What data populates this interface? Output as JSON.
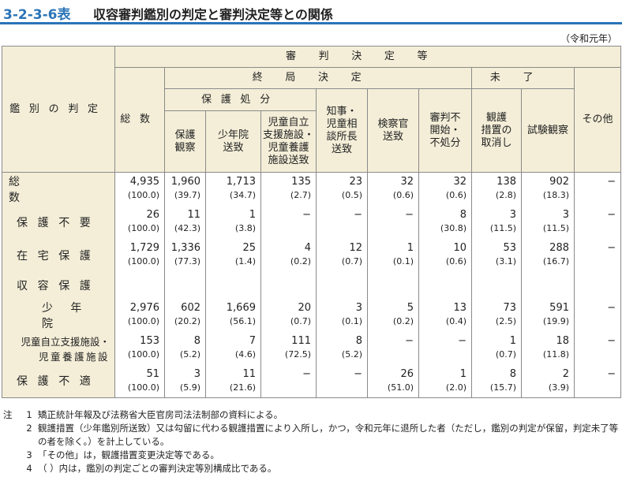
{
  "header": {
    "number": "3-2-3-6表",
    "title": "収容審判鑑別の判定と審判決定等との関係"
  },
  "era": "（令和元年）",
  "table": {
    "corner": "鑑別の判定",
    "group": "審判決定等",
    "total": "総数",
    "final": "終局決定",
    "pending": "未了",
    "other": "その他",
    "protective": "保護処分",
    "cols": [
      [
        "保護",
        "観察"
      ],
      [
        "少年院",
        "送致"
      ],
      [
        "児童自立",
        "支援施設・",
        "児童養護",
        "施設送致"
      ],
      [
        "知事・",
        "児童相",
        "談所長",
        "送致"
      ],
      [
        "検察官",
        "送致"
      ],
      [
        "審判不",
        "開始・",
        "不処分"
      ],
      [
        "観護",
        "措置の",
        "取消し"
      ],
      [
        "試験観察"
      ]
    ],
    "rows": [
      {
        "label": [
          "総数"
        ],
        "cells": [
          [
            "4,935",
            "(100.0)"
          ],
          [
            "1,960",
            "(39.7)"
          ],
          [
            "1,713",
            "(34.7)"
          ],
          [
            "135",
            "(2.7)"
          ],
          [
            "23",
            "(0.5)"
          ],
          [
            "32",
            "(0.6)"
          ],
          [
            "32",
            "(0.6)"
          ],
          [
            "138",
            "(2.8)"
          ],
          [
            "902",
            "(18.3)"
          ],
          [
            "−"
          ]
        ]
      },
      {
        "label": [
          "保護不要"
        ],
        "cells": [
          [
            "26",
            "(100.0)"
          ],
          [
            "11",
            "(42.3)"
          ],
          [
            "1",
            "(3.8)"
          ],
          [
            "−"
          ],
          [
            "−"
          ],
          [
            "−"
          ],
          [
            "8",
            "(30.8)"
          ],
          [
            "3",
            "(11.5)"
          ],
          [
            "3",
            "(11.5)"
          ],
          [
            "−"
          ]
        ]
      },
      {
        "label": [
          "在宅保護"
        ],
        "cells": [
          [
            "1,729",
            "(100.0)"
          ],
          [
            "1,336",
            "(77.3)"
          ],
          [
            "25",
            "(1.4)"
          ],
          [
            "4",
            "(0.2)"
          ],
          [
            "12",
            "(0.7)"
          ],
          [
            "1",
            "(0.1)"
          ],
          [
            "10",
            "(0.6)"
          ],
          [
            "53",
            "(3.1)"
          ],
          [
            "288",
            "(16.7)"
          ],
          [
            "−"
          ]
        ]
      },
      {
        "label": [
          "収容保護"
        ],
        "cells": []
      },
      {
        "label": [
          "少年院"
        ],
        "cells": [
          [
            "2,976",
            "(100.0)"
          ],
          [
            "602",
            "(20.2)"
          ],
          [
            "1,669",
            "(56.1)"
          ],
          [
            "20",
            "(0.7)"
          ],
          [
            "3",
            "(0.1)"
          ],
          [
            "5",
            "(0.2)"
          ],
          [
            "13",
            "(0.4)"
          ],
          [
            "73",
            "(2.5)"
          ],
          [
            "591",
            "(19.9)"
          ],
          [
            "−"
          ]
        ]
      },
      {
        "label": [
          "児童自立支援施設・",
          "児童養護施設"
        ],
        "cells": [
          [
            "153",
            "(100.0)"
          ],
          [
            "8",
            "(5.2)"
          ],
          [
            "7",
            "(4.6)"
          ],
          [
            "111",
            "(72.5)"
          ],
          [
            "8",
            "(5.2)"
          ],
          [
            "−"
          ],
          [
            "−"
          ],
          [
            "1",
            "(0.7)"
          ],
          [
            "18",
            "(11.8)"
          ],
          [
            "−"
          ]
        ]
      },
      {
        "label": [
          "保護不適"
        ],
        "cells": [
          [
            "51",
            "(100.0)"
          ],
          [
            "3",
            "(5.9)"
          ],
          [
            "11",
            "(21.6)"
          ],
          [
            "−"
          ],
          [
            "−"
          ],
          [
            "26",
            "(51.0)"
          ],
          [
            "1",
            "(2.0)"
          ],
          [
            "8",
            "(15.7)"
          ],
          [
            "2",
            "(3.9)"
          ],
          [
            "−"
          ]
        ]
      }
    ]
  },
  "notes": {
    "label": "注",
    "items": [
      {
        "num": "1",
        "text": "矯正統計年報及び法務省大臣官房司法法制部の資料による。"
      },
      {
        "num": "2",
        "text": "観護措置（少年鑑別所送致）又は勾留に代わる観護措置により入所し，かつ，令和元年に退所した者（ただし，鑑別の判定が保留，判定未了等の者を除く。）を計上している。"
      },
      {
        "num": "3",
        "text": "「その他」は，観護措置変更決定等である。"
      },
      {
        "num": "4",
        "text": "（ ）内は，鑑別の判定ごとの審判決定等別構成比である。"
      }
    ]
  }
}
